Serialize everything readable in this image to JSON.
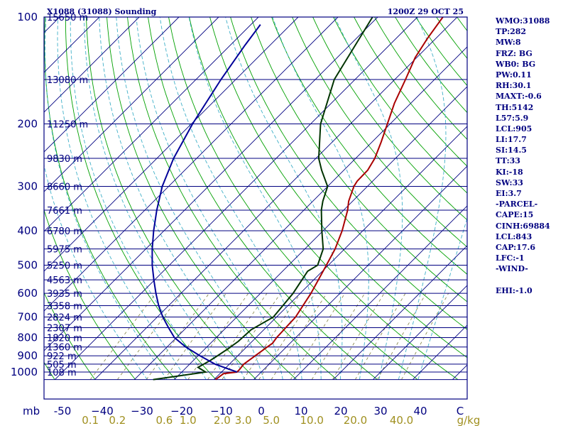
{
  "chart_data": {
    "type": "line",
    "title": "X1088 (31088) Sounding",
    "valid_time": "1200Z 29 OCT 25",
    "pressure_axis_label": "mb",
    "pressure_levels": [
      100,
      200,
      300,
      400,
      500,
      600,
      700,
      800,
      900,
      1000
    ],
    "height_labels": [
      {
        "p": 100,
        "label": "15650 m"
      },
      {
        "p": 150,
        "label": "13080 m"
      },
      {
        "p": 200,
        "label": "11250 m"
      },
      {
        "p": 250,
        "label": "9830 m"
      },
      {
        "p": 300,
        "label": "8660 m"
      },
      {
        "p": 350,
        "label": "7661 m"
      },
      {
        "p": 400,
        "label": "6780 m"
      },
      {
        "p": 450,
        "label": "5975 m"
      },
      {
        "p": 500,
        "label": "5250 m"
      },
      {
        "p": 550,
        "label": "4563 m"
      },
      {
        "p": 600,
        "label": "3935 m"
      },
      {
        "p": 650,
        "label": "3358 m"
      },
      {
        "p": 700,
        "label": "2824 m"
      },
      {
        "p": 750,
        "label": "2307 m"
      },
      {
        "p": 800,
        "label": "1820 m"
      },
      {
        "p": 850,
        "label": "1360 m"
      },
      {
        "p": 900,
        "label": "922 m"
      },
      {
        "p": 950,
        "label": "505 m"
      },
      {
        "p": 1000,
        "label": "108 m"
      }
    ],
    "temperature_ticks": [
      -50,
      -40,
      -30,
      -20,
      -10,
      0,
      10,
      20,
      30,
      40,
      50
    ],
    "temperature_tick_labels": [
      "-50",
      "−40",
      "−30",
      "−20",
      "−10",
      "0",
      "10",
      "20",
      "30",
      "40",
      "C"
    ],
    "mixing_ratio_unit": "g/kg",
    "mixing_ratio_labels": [
      "0.1",
      "0.2",
      "0.6",
      "1.0",
      "2.0",
      "3.0",
      "5.0",
      "10.0",
      "20.0",
      "40.0"
    ],
    "mixing_ratio_values": [
      0.1,
      0.2,
      0.6,
      1.0,
      2.0,
      3.0,
      5.0,
      10.0,
      20.0,
      40.0
    ],
    "xlim": [
      -50,
      50
    ],
    "plim": [
      100,
      1050
    ],
    "series": [
      {
        "name": "Temperature",
        "color": "#aa0000",
        "points": [
          [
            1050,
            -9.6
          ],
          [
            1010,
            -9.1
          ],
          [
            1000,
            -6.1
          ],
          [
            985,
            -6.1
          ],
          [
            950,
            -6.4
          ],
          [
            850,
            -4.8
          ],
          [
            830,
            -4.4
          ],
          [
            800,
            -4.8
          ],
          [
            700,
            -5.2
          ],
          [
            600,
            -7.3
          ],
          [
            500,
            -10.5
          ],
          [
            450,
            -12.4
          ],
          [
            400,
            -15.2
          ],
          [
            350,
            -19.0
          ],
          [
            330,
            -21.0
          ],
          [
            300,
            -23.4
          ],
          [
            290,
            -23.9
          ],
          [
            270,
            -24.0
          ],
          [
            250,
            -25.2
          ],
          [
            225,
            -27.7
          ],
          [
            200,
            -30.7
          ],
          [
            175,
            -34.1
          ],
          [
            150,
            -37.3
          ],
          [
            130,
            -40.4
          ],
          [
            115,
            -42.1
          ],
          [
            100,
            -43.6
          ]
        ]
      },
      {
        "name": "Dewpoint",
        "color": "#003300",
        "points": [
          [
            1050,
            -25.3
          ],
          [
            1000,
            -14.0
          ],
          [
            970,
            -17.1
          ],
          [
            930,
            -15.8
          ],
          [
            900,
            -15.1
          ],
          [
            860,
            -14.2
          ],
          [
            820,
            -13.5
          ],
          [
            760,
            -13.2
          ],
          [
            700,
            -10.8
          ],
          [
            600,
            -11.8
          ],
          [
            520,
            -13.7
          ],
          [
            500,
            -12.7
          ],
          [
            450,
            -15.4
          ],
          [
            400,
            -20.3
          ],
          [
            350,
            -25.6
          ],
          [
            330,
            -27.5
          ],
          [
            300,
            -30.0
          ],
          [
            270,
            -35.6
          ],
          [
            250,
            -39.3
          ],
          [
            200,
            -47.5
          ],
          [
            150,
            -55.2
          ],
          [
            100,
            -61.3
          ]
        ]
      },
      {
        "name": "Parcel",
        "color": "#000099",
        "points": [
          [
            1000,
            -6.1
          ],
          [
            950,
            -13.6
          ],
          [
            900,
            -19.5
          ],
          [
            850,
            -25.3
          ],
          [
            800,
            -30.5
          ],
          [
            750,
            -34.5
          ],
          [
            700,
            -38.6
          ],
          [
            650,
            -42.5
          ],
          [
            600,
            -46.3
          ],
          [
            550,
            -50.2
          ],
          [
            500,
            -54.3
          ],
          [
            450,
            -58.4
          ],
          [
            400,
            -62.6
          ],
          [
            350,
            -67.0
          ],
          [
            300,
            -71.6
          ],
          [
            250,
            -75.8
          ],
          [
            200,
            -79.7
          ],
          [
            150,
            -83.7
          ],
          [
            120,
            -86.3
          ],
          [
            105,
            -87.6
          ]
        ]
      }
    ]
  },
  "indices": [
    "WMO:31088",
    "TP:282",
    "MW:8",
    "FRZ: BG",
    "WB0: BG",
    "PW:0.11",
    "RH:30.1",
    "MAXT:-0.6",
    "TH:5142",
    "L57:5.9",
    "LCL:905",
    "LI:17.7",
    "SI:14.5",
    "TT:33",
    "KI:-18",
    "SW:33",
    "EI:3.7",
    "-PARCEL-",
    "CAPE:15",
    "CINH:69884",
    "LCL:843",
    "CAP:17.6",
    "LFC:-1",
    "-WIND-",
    "",
    "EHI:-1.0"
  ],
  "colors": {
    "isobar": "#000080",
    "isotherm": "#000080",
    "dry_adiabat": "#00a000",
    "moist_adiabat": "#40b0c8",
    "mixing_ratio": "#808040",
    "mr_text": "#a09020",
    "axis_text": "#000080"
  }
}
